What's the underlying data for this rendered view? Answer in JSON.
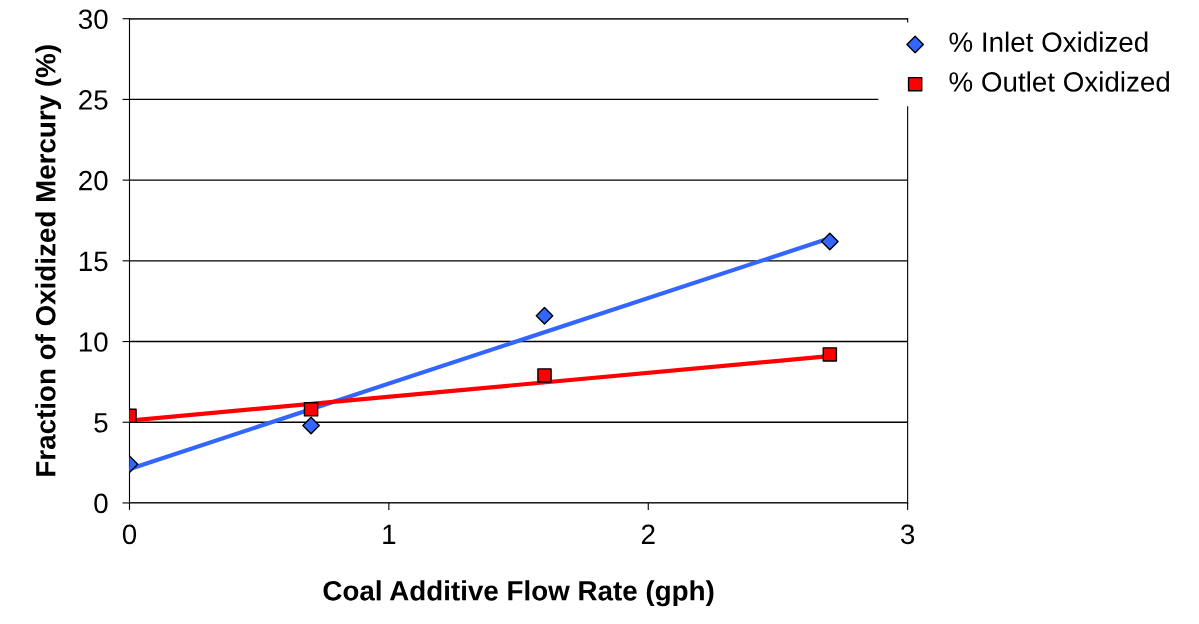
{
  "chart_data": {
    "type": "scatter",
    "xlabel": "Coal Additive Flow Rate (gph)",
    "ylabel": "Fraction of Oxidized Mercury (%)",
    "xlim": [
      0,
      3
    ],
    "ylim": [
      0,
      30
    ],
    "xticks": [
      0,
      1,
      2,
      3
    ],
    "yticks": [
      0,
      5,
      10,
      15,
      20,
      25,
      30
    ],
    "grid": "y",
    "legend": "top right",
    "series": [
      {
        "name": "% Inlet Oxidized",
        "marker": "diamond",
        "color": "#3366ff",
        "x": [
          0,
          0.7,
          1.6,
          2.7
        ],
        "values": [
          2.4,
          4.8,
          11.6,
          16.2
        ]
      },
      {
        "name": "% Outlet Oxidized",
        "marker": "square",
        "color": "#ff0000",
        "x": [
          0,
          0.7,
          1.6,
          2.7
        ],
        "values": [
          5.4,
          5.8,
          7.9,
          9.2
        ]
      },
      {
        "type": "line",
        "color": "#3366ff",
        "line_style": "solid",
        "x": [
          0,
          2.7
        ],
        "values": [
          2.1,
          16.4
        ]
      },
      {
        "type": "line",
        "color": "#ff0000",
        "line_style": "solid",
        "x": [
          0,
          2.7
        ],
        "values": [
          5.1,
          9.1
        ]
      }
    ]
  }
}
